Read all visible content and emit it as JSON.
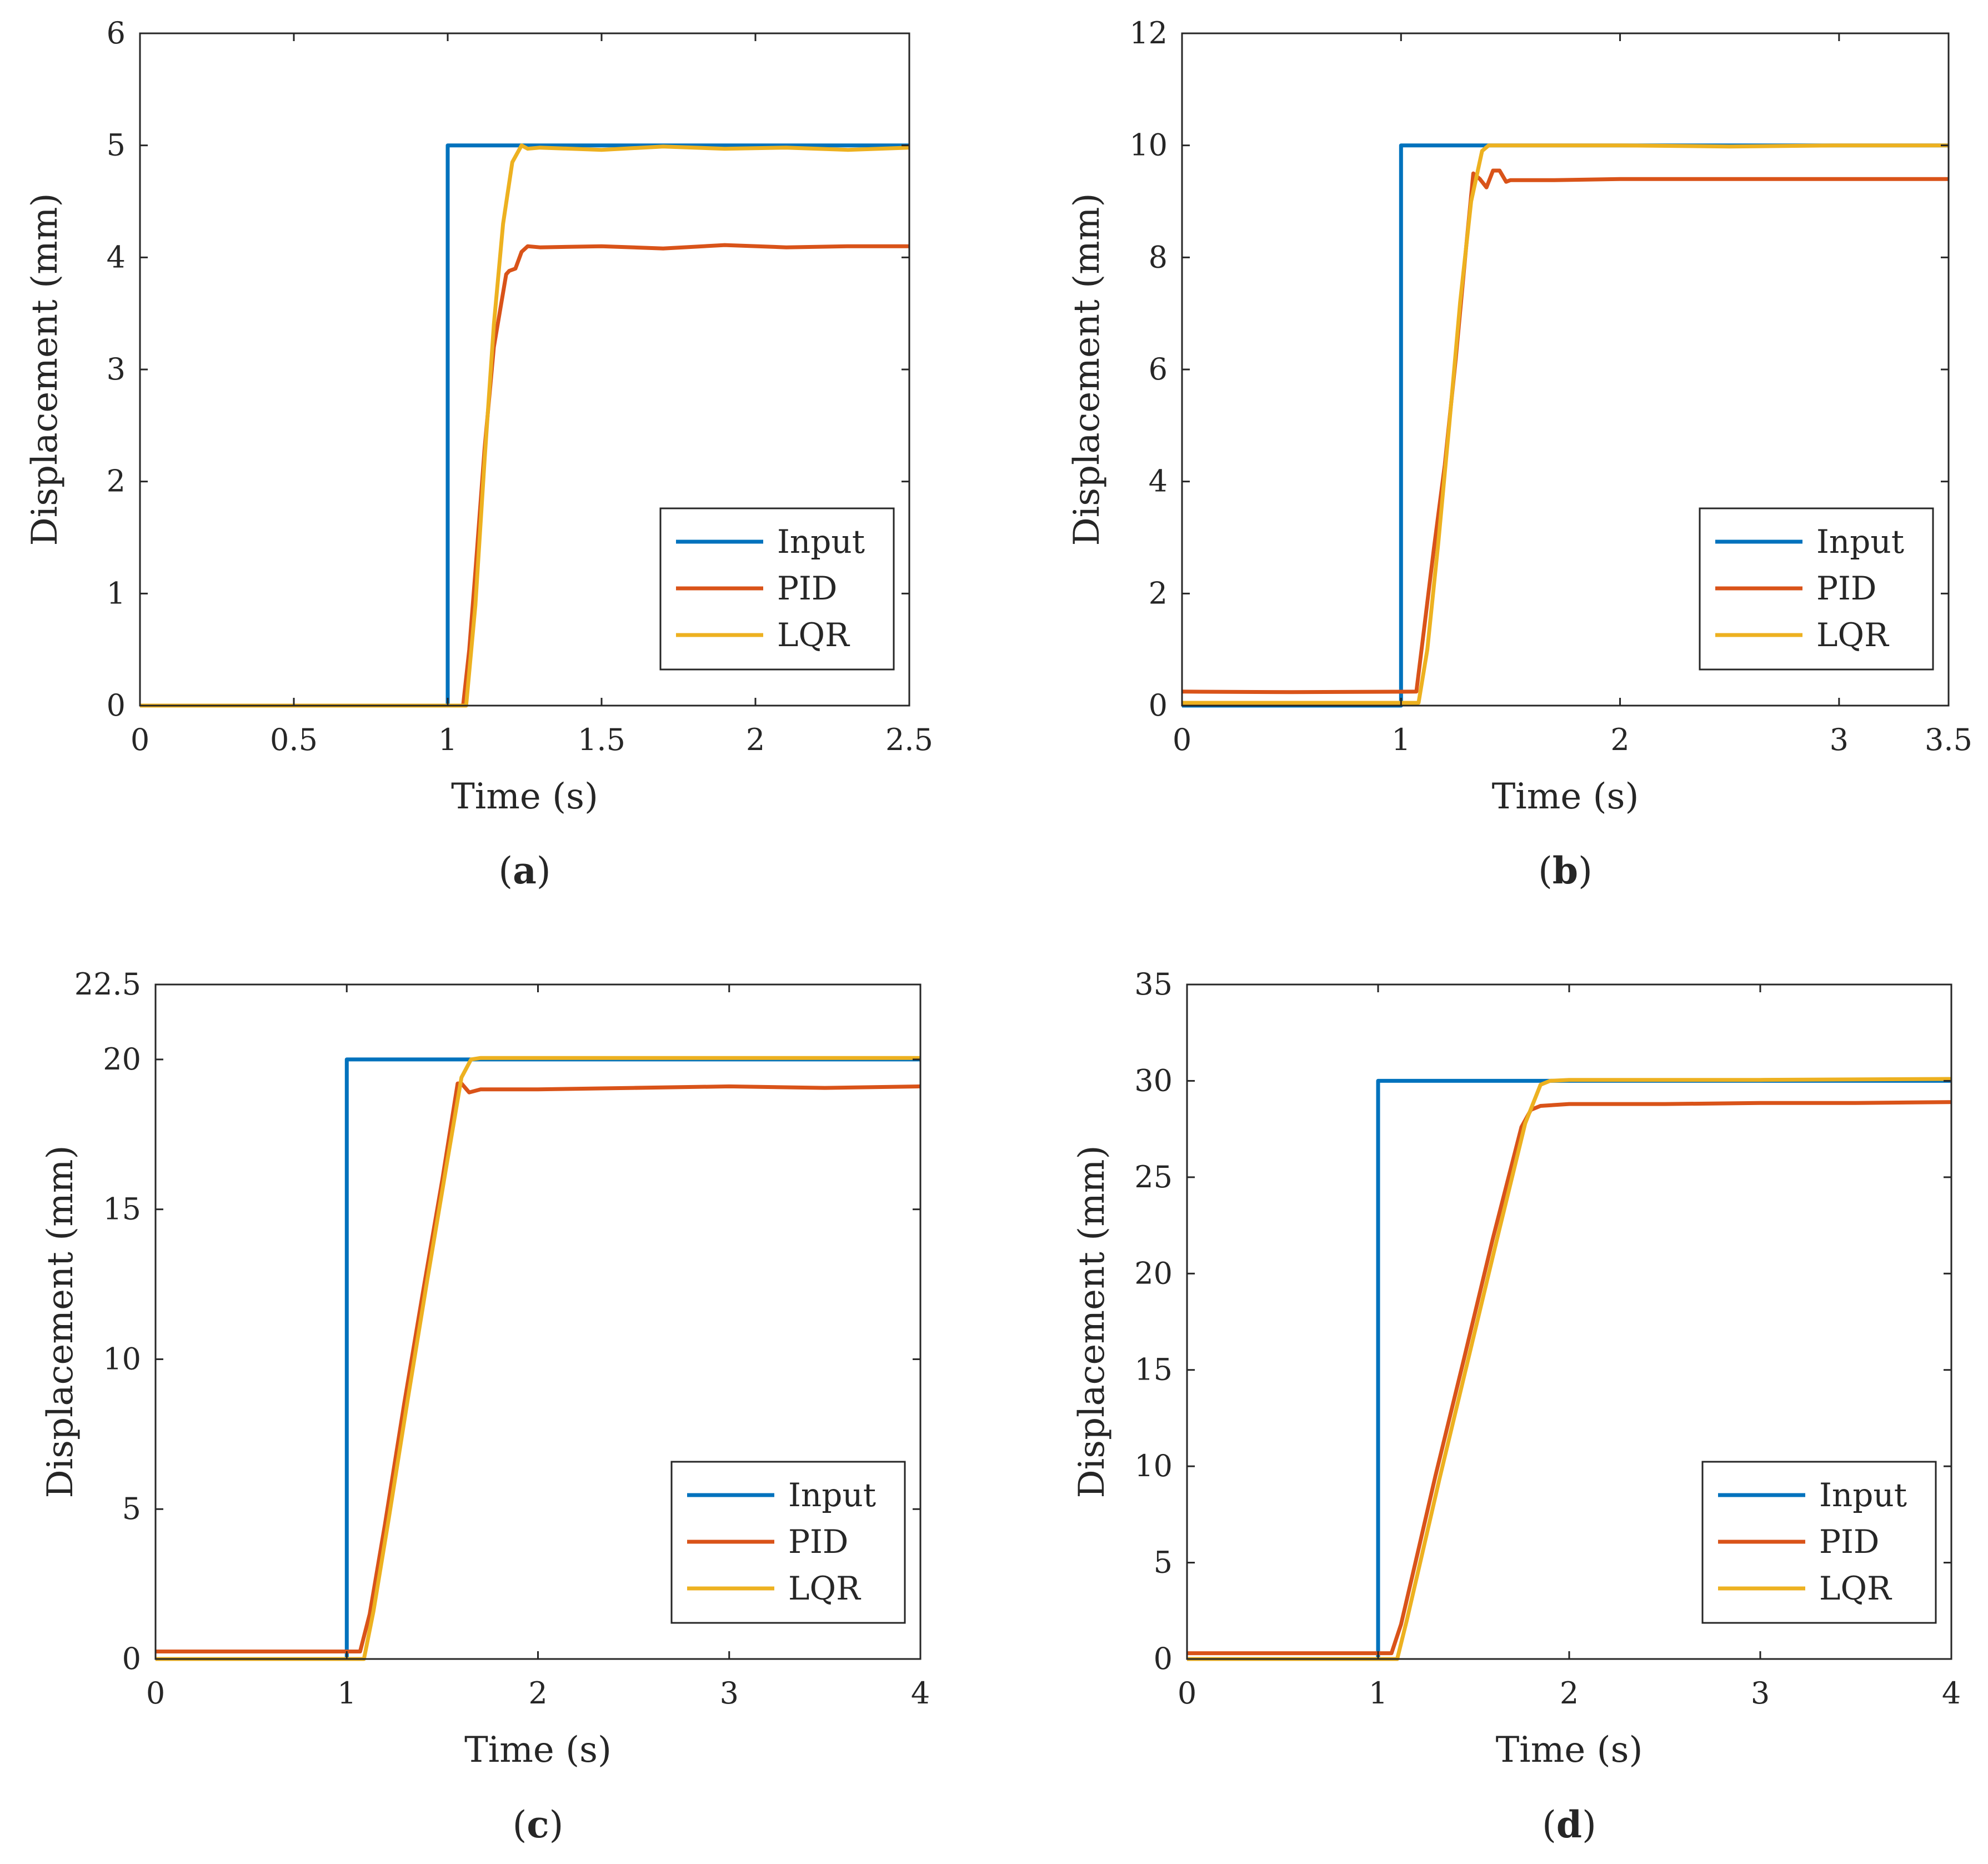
{
  "figure": {
    "colors": {
      "input": "#0072BD",
      "pid": "#D95319",
      "lqr": "#EDB120",
      "axis": "#262626",
      "background": "#ffffff"
    }
  },
  "chart_data": [
    {
      "id": "a",
      "type": "line",
      "panel_label": "a",
      "xlabel": "Time (s)",
      "ylabel": "Displacement (mm)",
      "xlim": [
        0,
        2.5
      ],
      "ylim": [
        0,
        6
      ],
      "xticks": [
        0,
        0.5,
        1,
        1.5,
        2,
        2.5
      ],
      "xtick_labels": [
        "0",
        "0.5",
        "1",
        "1.5",
        "2",
        "2.5"
      ],
      "yticks": [
        0,
        1,
        2,
        3,
        4,
        5,
        6
      ],
      "ytick_labels": [
        "0",
        "1",
        "2",
        "3",
        "4",
        "5",
        "6"
      ],
      "legend": {
        "location": "lower-right",
        "entries": [
          "Input",
          "PID",
          "LQR"
        ]
      },
      "series": [
        {
          "name": "Input",
          "color": "#0072BD",
          "x": [
            0,
            1.0,
            1.0,
            2.5
          ],
          "y": [
            0,
            0,
            5,
            5
          ]
        },
        {
          "name": "PID",
          "color": "#D95319",
          "x": [
            0,
            1.05,
            1.07,
            1.09,
            1.12,
            1.15,
            1.19,
            1.2,
            1.22,
            1.24,
            1.26,
            1.3,
            1.5,
            1.7,
            1.9,
            2.1,
            2.3,
            2.5
          ],
          "y": [
            0,
            0,
            0.5,
            1.2,
            2.3,
            3.2,
            3.85,
            3.88,
            3.9,
            4.05,
            4.1,
            4.09,
            4.1,
            4.08,
            4.11,
            4.09,
            4.1,
            4.1
          ]
        },
        {
          "name": "LQR",
          "color": "#EDB120",
          "x": [
            0,
            1.06,
            1.09,
            1.12,
            1.15,
            1.18,
            1.21,
            1.24,
            1.26,
            1.3,
            1.5,
            1.7,
            1.9,
            2.1,
            2.3,
            2.5
          ],
          "y": [
            0,
            0,
            0.9,
            2.2,
            3.4,
            4.3,
            4.85,
            5.0,
            4.97,
            4.98,
            4.96,
            4.99,
            4.97,
            4.98,
            4.96,
            4.98
          ]
        }
      ]
    },
    {
      "id": "b",
      "type": "line",
      "panel_label": "b",
      "xlabel": "Time (s)",
      "ylabel": "Displacement (mm)",
      "xlim": [
        0,
        3.5
      ],
      "ylim": [
        0,
        12
      ],
      "xticks": [
        0,
        1,
        2,
        3,
        3.5
      ],
      "xtick_labels": [
        "0",
        "1",
        "2",
        "3",
        "3.5"
      ],
      "yticks": [
        0,
        2,
        4,
        6,
        8,
        10,
        12
      ],
      "ytick_labels": [
        "0",
        "2",
        "4",
        "6",
        "8",
        "10",
        "12"
      ],
      "legend": {
        "location": "lower-right",
        "entries": [
          "Input",
          "PID",
          "LQR"
        ]
      },
      "series": [
        {
          "name": "Input",
          "color": "#0072BD",
          "x": [
            0,
            1.0,
            1.0,
            3.5
          ],
          "y": [
            0,
            0,
            10,
            10
          ]
        },
        {
          "name": "PID",
          "color": "#D95319",
          "x": [
            0,
            0.5,
            1.07,
            1.1,
            1.15,
            1.2,
            1.25,
            1.3,
            1.33,
            1.36,
            1.39,
            1.42,
            1.45,
            1.48,
            1.5,
            1.7,
            2.0,
            2.5,
            3.0,
            3.5
          ],
          "y": [
            0.25,
            0.24,
            0.25,
            1.2,
            2.8,
            4.3,
            6.2,
            8.3,
            9.5,
            9.4,
            9.25,
            9.55,
            9.55,
            9.35,
            9.38,
            9.38,
            9.4,
            9.4,
            9.4,
            9.4
          ]
        },
        {
          "name": "LQR",
          "color": "#EDB120",
          "x": [
            0,
            1.08,
            1.12,
            1.17,
            1.22,
            1.27,
            1.32,
            1.37,
            1.4,
            1.45,
            2.0,
            2.5,
            3.0,
            3.5
          ],
          "y": [
            0.05,
            0.05,
            1.0,
            2.9,
            5.0,
            7.2,
            9.0,
            9.9,
            10.0,
            10.0,
            10.0,
            9.98,
            10.0,
            10.0
          ]
        }
      ]
    },
    {
      "id": "c",
      "type": "line",
      "panel_label": "c",
      "xlabel": "Time (s)",
      "ylabel": "Displacement (mm)",
      "xlim": [
        0,
        4
      ],
      "ylim": [
        0,
        22.5
      ],
      "xticks": [
        0,
        1,
        2,
        3,
        4
      ],
      "xtick_labels": [
        "0",
        "1",
        "2",
        "3",
        "4"
      ],
      "yticks": [
        0,
        5,
        10,
        15,
        20,
        22.5
      ],
      "ytick_labels": [
        "0",
        "5",
        "10",
        "15",
        "20",
        "22.5"
      ],
      "legend": {
        "location": "lower-right",
        "entries": [
          "Input",
          "PID",
          "LQR"
        ]
      },
      "series": [
        {
          "name": "Input",
          "color": "#0072BD",
          "x": [
            0,
            1.0,
            1.0,
            4.0
          ],
          "y": [
            0,
            0,
            20,
            20
          ]
        },
        {
          "name": "PID",
          "color": "#D95319",
          "x": [
            0,
            1.07,
            1.12,
            1.2,
            1.3,
            1.4,
            1.5,
            1.58,
            1.6,
            1.64,
            1.7,
            2.0,
            2.5,
            3.0,
            3.5,
            4.0
          ],
          "y": [
            0.25,
            0.25,
            1.5,
            4.5,
            8.5,
            12.3,
            16.0,
            19.2,
            19.2,
            18.9,
            19.0,
            19.0,
            19.05,
            19.1,
            19.05,
            19.1
          ]
        },
        {
          "name": "LQR",
          "color": "#EDB120",
          "x": [
            0,
            1.09,
            1.14,
            1.22,
            1.32,
            1.42,
            1.52,
            1.6,
            1.65,
            1.7,
            2.0,
            3.0,
            4.0
          ],
          "y": [
            0,
            0,
            1.6,
            4.7,
            8.7,
            12.6,
            16.4,
            19.4,
            20.0,
            20.05,
            20.05,
            20.05,
            20.05
          ]
        }
      ]
    },
    {
      "id": "d",
      "type": "line",
      "panel_label": "d",
      "xlabel": "Time (s)",
      "ylabel": "Displacement (mm)",
      "xlim": [
        0,
        4
      ],
      "ylim": [
        0,
        35
      ],
      "xticks": [
        0,
        1,
        2,
        3,
        4
      ],
      "xtick_labels": [
        "0",
        "1",
        "2",
        "3",
        "4"
      ],
      "yticks": [
        0,
        5,
        10,
        15,
        20,
        25,
        30,
        35
      ],
      "ytick_labels": [
        "0",
        "5",
        "10",
        "15",
        "20",
        "25",
        "30",
        "35"
      ],
      "legend": {
        "location": "lower-right",
        "entries": [
          "Input",
          "PID",
          "LQR"
        ]
      },
      "series": [
        {
          "name": "Input",
          "color": "#0072BD",
          "x": [
            0,
            1.0,
            1.0,
            4.0
          ],
          "y": [
            0,
            0,
            30,
            30
          ]
        },
        {
          "name": "PID",
          "color": "#D95319",
          "x": [
            0,
            1.07,
            1.12,
            1.2,
            1.3,
            1.45,
            1.6,
            1.75,
            1.8,
            1.85,
            2.0,
            2.5,
            3.0,
            3.5,
            4.0
          ],
          "y": [
            0.3,
            0.3,
            1.8,
            5.2,
            9.5,
            15.6,
            21.8,
            27.6,
            28.5,
            28.7,
            28.8,
            28.8,
            28.85,
            28.85,
            28.9
          ]
        },
        {
          "name": "LQR",
          "color": "#EDB120",
          "x": [
            0,
            1.1,
            1.15,
            1.22,
            1.32,
            1.47,
            1.62,
            1.77,
            1.85,
            1.9,
            2.0,
            3.0,
            4.0
          ],
          "y": [
            0,
            0,
            2.0,
            5.0,
            9.3,
            15.5,
            21.7,
            27.8,
            29.8,
            30.0,
            30.05,
            30.05,
            30.1
          ]
        }
      ]
    }
  ]
}
